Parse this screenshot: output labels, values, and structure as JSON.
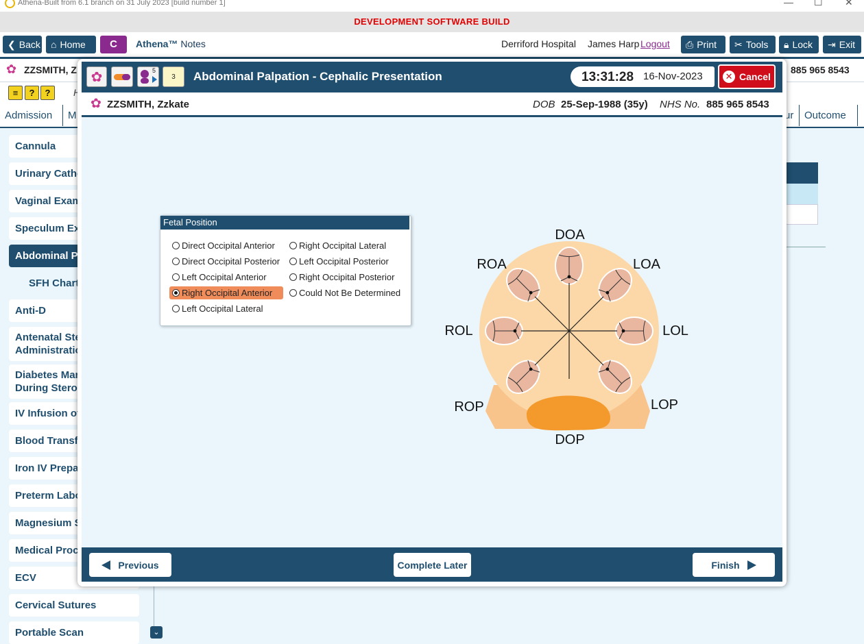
{
  "window": {
    "title": "Athena-Built from 6.1 branch on 31 July 2023 [build number 1]",
    "controls": {
      "minimize": "—",
      "maximize": "☐",
      "close": "✕"
    }
  },
  "dev_banner": "DEVELOPMENT SOFTWARE BUILD",
  "topnav": {
    "back": "Back",
    "home": "Home",
    "c_button": "C",
    "app_name": "Athena™",
    "app_section": "Notes",
    "hospital": "Derriford Hospital",
    "user": "James Harp",
    "logout": "Logout",
    "print": "Print",
    "tools": "Tools",
    "lock": "Lock",
    "exit": "Exit"
  },
  "background_page": {
    "patient_name_partial": "ZZSMITH, Z",
    "nhs_partial": "885 965 8543",
    "icon_row_letter": "H",
    "tabs": [
      "Admission",
      "M",
      "ur",
      "Outcome"
    ],
    "sidenav": [
      {
        "label": "Cannula"
      },
      {
        "label": "Urinary Cathe"
      },
      {
        "label": "Vaginal Exami"
      },
      {
        "label": "Speculum Exa"
      },
      {
        "label": "Abdominal Pa",
        "active": true
      },
      {
        "label": "SFH Chart",
        "sub": true
      },
      {
        "label": "Anti-D"
      },
      {
        "label": "Antenatal Ster\nAdministration"
      },
      {
        "label": "Diabetes Man\nDuring Steroid"
      },
      {
        "label": "IV Infusion of"
      },
      {
        "label": "Blood Transfu"
      },
      {
        "label": "Iron IV Prepar"
      },
      {
        "label": "Preterm Labou"
      },
      {
        "label": "Magnesium Su"
      },
      {
        "label": "Medical Proce"
      },
      {
        "label": "ECV"
      },
      {
        "label": "Cervical Sutures"
      },
      {
        "label": "Portable Scan"
      }
    ]
  },
  "modal": {
    "title": "Abdominal Palpation - Cephalic Presentation",
    "icon_badges": {
      "pills_count": "5",
      "notes_count": "3"
    },
    "time": "13:31:28",
    "date": "16-Nov-2023",
    "cancel": "Cancel",
    "patient": {
      "name": "ZZSMITH, Zzkate",
      "dob_label": "DOB",
      "dob": "25-Sep-1988 (35y)",
      "nhs_label": "NHS No.",
      "nhs": "885 965 8543"
    },
    "footer": {
      "previous": "Previous",
      "complete_later": "Complete Later",
      "finish": "Finish"
    }
  },
  "fetal_position": {
    "title": "Fetal Position",
    "selected": "Right Occipital Anterior",
    "options": [
      "Direct Occipital Anterior",
      "Direct Occipital Posterior",
      "Left Occipital Anterior",
      "Right Occipital Anterior",
      "Left Occipital Lateral",
      "Right Occipital Lateral",
      "Left Occipital Posterior",
      "Right Occipital Posterior",
      "Could Not Be Determined"
    ]
  },
  "diagram": {
    "labels": {
      "doa": "DOA",
      "roa": "ROA",
      "loa": "LOA",
      "rol": "ROL",
      "lol": "LOL",
      "rop": "ROP",
      "lop": "LOP",
      "dop": "DOP"
    },
    "colors": {
      "disc": "#fcd8a8",
      "pelvis": "#f9c48c",
      "head": "#e9b6a0",
      "dop_blob": "#f49a2c"
    }
  },
  "colors": {
    "navy": "#1f4e6e",
    "purple": "#8b2a8e",
    "red": "#d00d1a",
    "dev_red": "#e30000",
    "selected": "#f08c5a",
    "bg": "#eaf6fc"
  }
}
